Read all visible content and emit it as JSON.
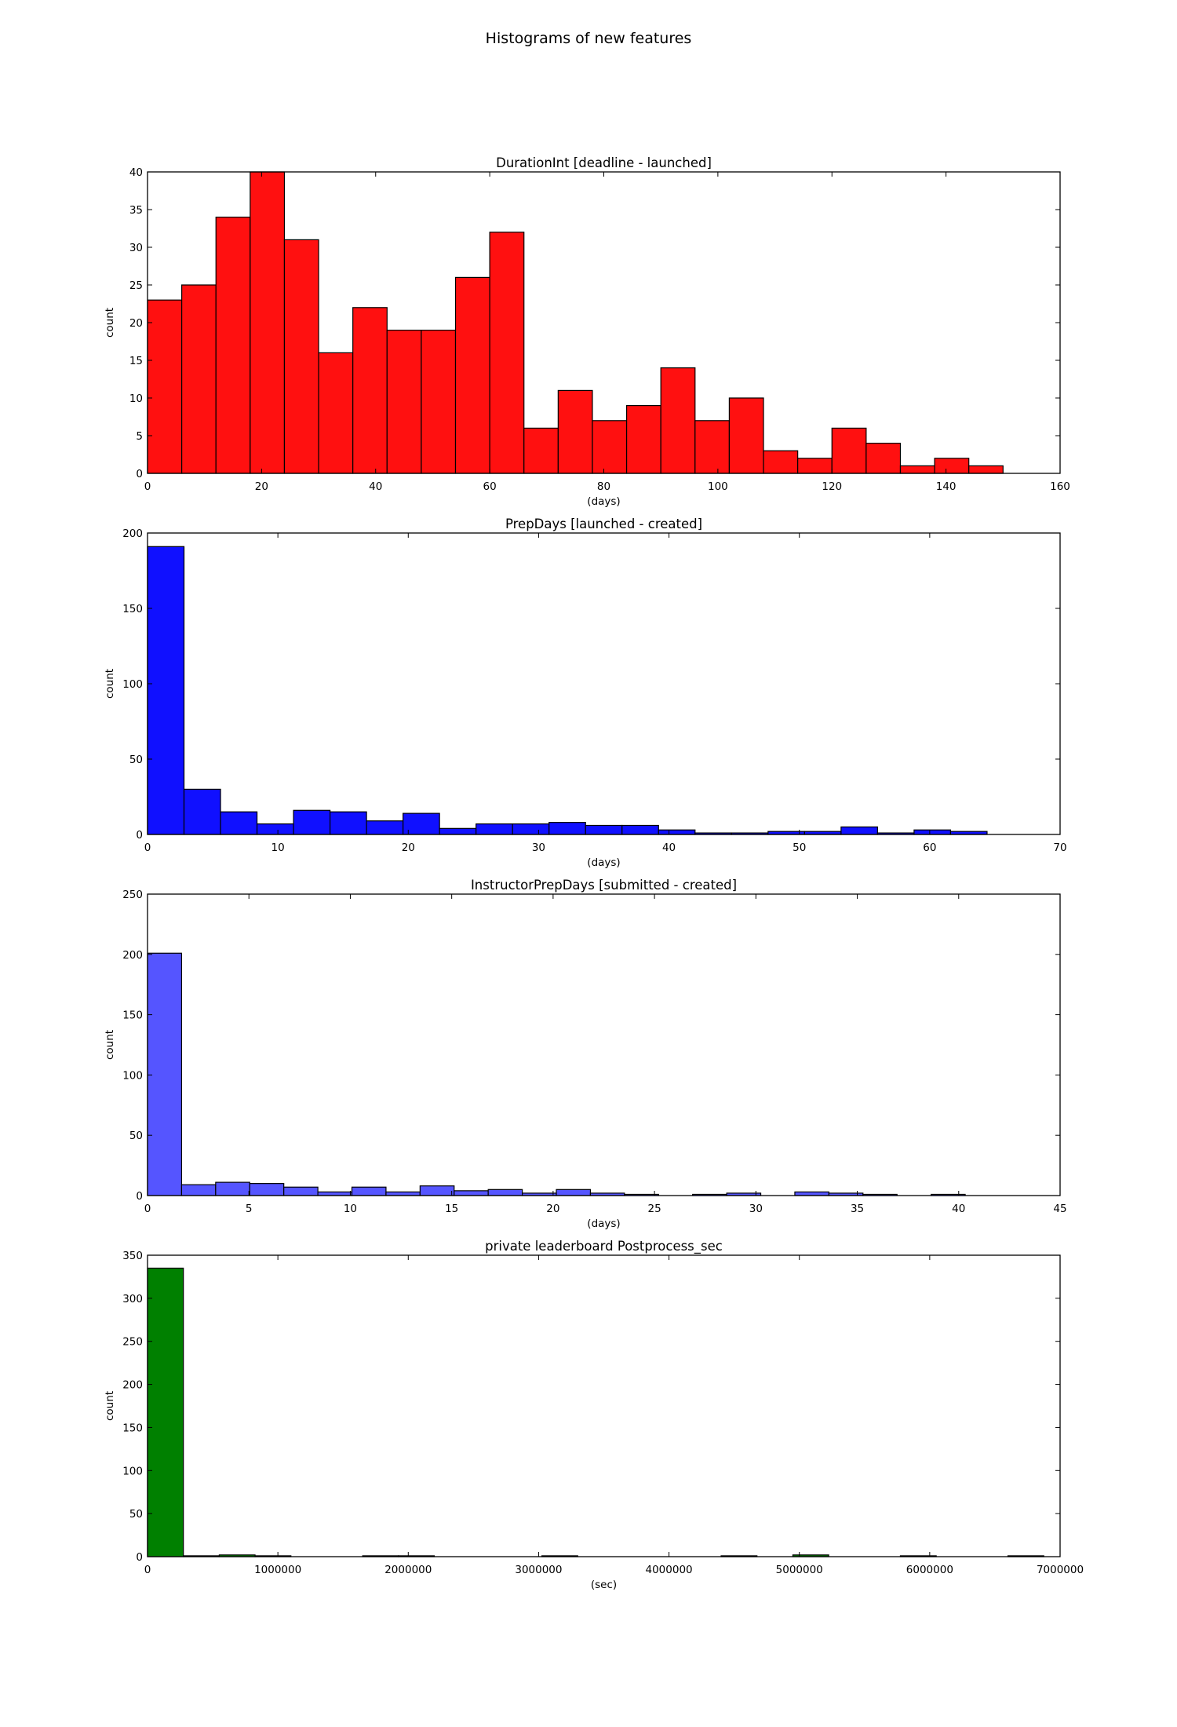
{
  "figure": {
    "title": "Histograms of new features"
  },
  "chart_data": [
    {
      "type": "bar",
      "title": "DurationInt [deadline - launched]",
      "xlabel": "(days)",
      "ylabel": "count",
      "color": "#ff1010",
      "bin_edges": [
        0,
        6,
        12,
        18,
        24,
        30,
        36,
        42,
        48,
        54,
        60,
        66,
        72,
        78,
        84,
        90,
        96,
        102,
        108,
        114,
        120,
        126,
        132,
        138,
        144,
        150
      ],
      "values": [
        23,
        25,
        34,
        40,
        31,
        16,
        22,
        19,
        19,
        26,
        32,
        6,
        11,
        7,
        9,
        14,
        7,
        10,
        3,
        2,
        6,
        4,
        1,
        2,
        1
      ],
      "xlim": [
        0,
        160
      ],
      "ylim": [
        0,
        40
      ],
      "xticks": [
        0,
        20,
        40,
        60,
        80,
        100,
        120,
        140,
        160
      ],
      "yticks": [
        0,
        5,
        10,
        15,
        20,
        25,
        30,
        35,
        40
      ],
      "xtick_labels": [
        "0",
        "20",
        "40",
        "60",
        "80",
        "100",
        "120",
        "140",
        "160"
      ],
      "ytick_labels": [
        "0",
        "5",
        "10",
        "15",
        "20",
        "25",
        "30",
        "35",
        "40"
      ]
    },
    {
      "type": "bar",
      "title": "PrepDays [launched - created]",
      "xlabel": "(days)",
      "ylabel": "count",
      "color": "#1010ff",
      "bin_edges": [
        0,
        2.8,
        5.6,
        8.4,
        11.2,
        14,
        16.8,
        19.6,
        22.4,
        25.2,
        28,
        30.8,
        33.6,
        36.4,
        39.2,
        42,
        44.8,
        47.6,
        50.4,
        53.2,
        56,
        58.8,
        61.6,
        64.4
      ],
      "values": [
        191,
        30,
        15,
        7,
        16,
        15,
        9,
        14,
        4,
        7,
        7,
        8,
        6,
        6,
        3,
        1,
        1,
        2,
        2,
        5,
        1,
        3,
        2
      ],
      "xlim": [
        0,
        70
      ],
      "ylim": [
        0,
        200
      ],
      "xticks": [
        0,
        10,
        20,
        30,
        40,
        50,
        60,
        70
      ],
      "yticks": [
        0,
        50,
        100,
        150,
        200
      ],
      "xtick_labels": [
        "0",
        "10",
        "20",
        "30",
        "40",
        "50",
        "60",
        "70"
      ],
      "ytick_labels": [
        "0",
        "50",
        "100",
        "150",
        "200"
      ]
    },
    {
      "type": "bar",
      "title": "InstructorPrepDays [submitted - created]",
      "xlabel": "(days)",
      "ylabel": "count",
      "color": "#5555ff",
      "bin_edges": [
        0,
        1.68,
        3.36,
        5.04,
        6.72,
        8.4,
        10.08,
        11.76,
        13.44,
        15.12,
        16.8,
        18.48,
        20.16,
        21.84,
        23.52,
        25.2,
        26.88,
        28.56,
        30.24,
        31.92,
        33.6,
        35.28,
        36.96,
        38.64,
        40.32,
        42
      ],
      "values": [
        201,
        9,
        11,
        10,
        7,
        3,
        7,
        3,
        8,
        4,
        5,
        2,
        5,
        2,
        1,
        0,
        1,
        2,
        0,
        3,
        2,
        1,
        0,
        1,
        0
      ],
      "xlim": [
        0,
        45
      ],
      "ylim": [
        0,
        250
      ],
      "xticks": [
        0,
        5,
        10,
        15,
        20,
        25,
        30,
        35,
        40,
        45
      ],
      "yticks": [
        0,
        50,
        100,
        150,
        200,
        250
      ],
      "xtick_labels": [
        "0",
        "5",
        "10",
        "15",
        "20",
        "25",
        "30",
        "35",
        "40",
        "45"
      ],
      "ytick_labels": [
        "0",
        "50",
        "100",
        "150",
        "200",
        "250"
      ]
    },
    {
      "type": "bar",
      "title": "private leaderboard Postprocess_sec",
      "xlabel": "(sec)",
      "ylabel": "count",
      "color": "#008000",
      "bin_edges": [
        0,
        275000,
        550000,
        825000,
        1100000,
        1375000,
        1650000,
        1925000,
        2200000,
        2475000,
        2750000,
        3025000,
        3300000,
        3575000,
        3850000,
        4125000,
        4400000,
        4675000,
        4950000,
        5225000,
        5500000,
        5775000,
        6050000,
        6325000,
        6600000,
        6875000
      ],
      "values": [
        335,
        1,
        2,
        1,
        0,
        0,
        1,
        1,
        0,
        0,
        0,
        1,
        0,
        0,
        0,
        0,
        1,
        0,
        2,
        0,
        0,
        1,
        0,
        0,
        1
      ],
      "xlim": [
        0,
        7000000
      ],
      "ylim": [
        0,
        350
      ],
      "xticks": [
        0,
        1000000,
        2000000,
        3000000,
        4000000,
        5000000,
        6000000,
        7000000
      ],
      "yticks": [
        0,
        50,
        100,
        150,
        200,
        250,
        300,
        350
      ],
      "xtick_labels": [
        "0",
        "1000000",
        "2000000",
        "3000000",
        "4000000",
        "5000000",
        "6000000",
        "7000000"
      ],
      "ytick_labels": [
        "0",
        "50",
        "100",
        "150",
        "200",
        "250",
        "300",
        "350"
      ]
    }
  ]
}
